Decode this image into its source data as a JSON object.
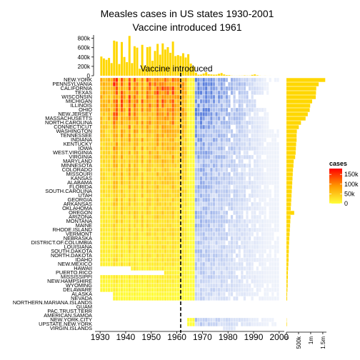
{
  "chart_data": {
    "type": "heatmap",
    "title": "Measles cases in US states 1930-2001",
    "subtitle": "Vaccine introduced 1961",
    "annotation": "Vaccine introduced",
    "vaccine_year": 1961,
    "x_range": [
      1928,
      2002
    ],
    "x_ticks": [
      "1930",
      "1940",
      "1950",
      "1960",
      "1970",
      "1980",
      "1990",
      "2000"
    ],
    "x_tick_values": [
      1930,
      1940,
      1950,
      1960,
      1970,
      1980,
      1990,
      2000
    ],
    "states": [
      "NEW.YORK",
      "PENNSYLVANIA",
      "CALIFORNIA",
      "TEXAS",
      "WISCONSIN",
      "MICHIGAN",
      "ILLINOIS",
      "OHIO",
      "NEW.JERSEY",
      "MASSACHUSETTS",
      "NORTH.CAROLINA",
      "CONNECTICUT",
      "WASHINGTON",
      "TENNESSEE",
      "INDIANA",
      "KENTUCKY",
      "IOWA",
      "WEST.VIRGINIA",
      "VIRGINIA",
      "MARYLAND",
      "MINNESOTA",
      "COLORADO",
      "MISSOURI",
      "KANSAS",
      "ALABAMA",
      "FLORIDA",
      "SOUTH.CAROLINA",
      "UTAH",
      "GEORGIA",
      "ARKANSAS",
      "OKLAHOMA",
      "OREGON",
      "ARIZONA",
      "MONTANA",
      "MAINE",
      "RHODE.ISLAND",
      "VERMONT",
      "NEBRASKA",
      "DISTRICT.OF.COLUMBIA",
      "LOUISIANA",
      "SOUTH.DAKOTA",
      "NORTH.DAKOTA",
      "IDAHO",
      "NEW.MEXICO",
      "HAWAII",
      "PUERTO.RICO",
      "MISSISSIPPI",
      "NEW.HAMPSHIRE",
      "WYOMING",
      "DELAWARE",
      "ALASKA",
      "NEVADA",
      "NORTHERN.MARIANA.ISLANDS",
      "GUAM",
      "PAC.TRUST.TERR",
      "AMERICAN.SAMOA",
      "NEW.YORK.CITY",
      "UPSTATE.NEW.YORK",
      "VIRGIN.ISLANDS"
    ],
    "state_totals": [
      1600000,
      1330000,
      1230000,
      1220000,
      1210000,
      1060000,
      980000,
      960000,
      880000,
      790000,
      600000,
      510000,
      430000,
      420000,
      420000,
      400000,
      390000,
      380000,
      360000,
      300000,
      290000,
      270000,
      260000,
      250000,
      240000,
      230000,
      220000,
      210000,
      200000,
      190000,
      180000,
      320000,
      170000,
      160000,
      150000,
      140000,
      130000,
      120000,
      110000,
      100000,
      100000,
      90000,
      90000,
      80000,
      70000,
      60000,
      60000,
      50000,
      50000,
      40000,
      30000,
      30000,
      0,
      0,
      0,
      0,
      10000,
      20000,
      0
    ],
    "state_profile": [
      1.0,
      0.97,
      0.95,
      0.92,
      0.9,
      0.88,
      0.84,
      0.86,
      0.8,
      0.78,
      0.7,
      0.66,
      0.6,
      0.58,
      0.58,
      0.55,
      0.54,
      0.54,
      0.52,
      0.46,
      0.45,
      0.43,
      0.42,
      0.41,
      0.4,
      0.39,
      0.38,
      0.37,
      0.36,
      0.35,
      0.34,
      0.33,
      0.32,
      0.3,
      0.29,
      0.28,
      0.26,
      0.25,
      0.24,
      0.23,
      0.22,
      0.21,
      0.2,
      0.19,
      0.15,
      0.14,
      0.16,
      0.14,
      0.1,
      0.09,
      0.05,
      0.06,
      0,
      0,
      0,
      0,
      0.18,
      0.2,
      0
    ],
    "state_first_year": [
      1930,
      1930,
      1930,
      1930,
      1930,
      1930,
      1930,
      1930,
      1930,
      1930,
      1930,
      1930,
      1930,
      1930,
      1930,
      1930,
      1930,
      1930,
      1930,
      1930,
      1930,
      1930,
      1930,
      1930,
      1930,
      1930,
      1930,
      1930,
      1930,
      1930,
      1930,
      1930,
      1930,
      1930,
      1930,
      1930,
      1930,
      1930,
      1930,
      1930,
      1930,
      1930,
      1930,
      1930,
      1942,
      1955,
      1930,
      1930,
      1930,
      1930,
      1935,
      1935,
      0,
      0,
      0,
      0,
      1964,
      1964,
      1978
    ],
    "state_last_year": [
      1999,
      1995,
      1995,
      1995,
      1990,
      1990,
      1990,
      1995,
      1995,
      1995,
      1995,
      1995,
      1999,
      1999,
      1999,
      1999,
      1999,
      1999,
      1999,
      1999,
      1999,
      1999,
      1999,
      1999,
      1999,
      1999,
      1999,
      1999,
      1999,
      1999,
      1999,
      1999,
      1999,
      1999,
      1999,
      1999,
      1999,
      1999,
      1999,
      1999,
      1999,
      1999,
      1999,
      1999,
      1999,
      1999,
      1999,
      1999,
      1999,
      1999,
      1999,
      1999,
      0,
      0,
      0,
      0,
      1998,
      1998,
      1982
    ],
    "year_totals": [
      [
        1930,
        410000
      ],
      [
        1931,
        370000
      ],
      [
        1932,
        340000
      ],
      [
        1933,
        380000
      ],
      [
        1934,
        270000
      ],
      [
        1935,
        750000
      ],
      [
        1936,
        730000
      ],
      [
        1937,
        250000
      ],
      [
        1938,
        720000
      ],
      [
        1939,
        400000
      ],
      [
        1940,
        290000
      ],
      [
        1941,
        850000
      ],
      [
        1942,
        270000
      ],
      [
        1943,
        630000
      ],
      [
        1944,
        600000
      ],
      [
        1945,
        150000
      ],
      [
        1946,
        660000
      ],
      [
        1947,
        220000
      ],
      [
        1948,
        610000
      ],
      [
        1949,
        620000
      ],
      [
        1950,
        320000
      ],
      [
        1951,
        530000
      ],
      [
        1952,
        680000
      ],
      [
        1953,
        450000
      ],
      [
        1954,
        690000
      ],
      [
        1955,
        560000
      ],
      [
        1956,
        610000
      ],
      [
        1957,
        490000
      ],
      [
        1958,
        730000
      ],
      [
        1959,
        420000
      ],
      [
        1960,
        440000
      ],
      [
        1961,
        420000
      ],
      [
        1962,
        480000
      ],
      [
        1963,
        390000
      ],
      [
        1964,
        460000
      ],
      [
        1965,
        260000
      ],
      [
        1966,
        200000
      ],
      [
        1967,
        65000
      ],
      [
        1968,
        22000
      ],
      [
        1969,
        25000
      ],
      [
        1970,
        47000
      ],
      [
        1971,
        75000
      ],
      [
        1972,
        32000
      ],
      [
        1973,
        27000
      ],
      [
        1974,
        22000
      ],
      [
        1975,
        24000
      ],
      [
        1976,
        41000
      ],
      [
        1977,
        57000
      ],
      [
        1978,
        27000
      ],
      [
        1979,
        14000
      ],
      [
        1980,
        13000
      ],
      [
        1981,
        3000
      ],
      [
        1982,
        1700
      ],
      [
        1983,
        1500
      ],
      [
        1984,
        2600
      ],
      [
        1985,
        2800
      ],
      [
        1986,
        6300
      ],
      [
        1987,
        3600
      ],
      [
        1988,
        3400
      ],
      [
        1989,
        18000
      ],
      [
        1990,
        28000
      ],
      [
        1991,
        9600
      ],
      [
        1992,
        2200
      ],
      [
        1993,
        300
      ],
      [
        1994,
        1000
      ],
      [
        1995,
        300
      ],
      [
        1996,
        500
      ],
      [
        1997,
        100
      ],
      [
        1998,
        100
      ],
      [
        1999,
        100
      ],
      [
        2000,
        80
      ],
      [
        2001,
        100
      ]
    ],
    "top_yaxis": {
      "ticks": [
        "0",
        "200k",
        "400k",
        "600k",
        "800k"
      ],
      "values": [
        0,
        200000,
        400000,
        600000,
        800000
      ],
      "max": 870000
    },
    "right_xaxis": {
      "ticks": [
        "0",
        "500k",
        "1m",
        "1.5m"
      ],
      "values": [
        0,
        500000,
        1000000,
        1500000
      ],
      "max": 1650000
    },
    "legend": {
      "title": "cases",
      "labels": [
        "150k",
        "100k",
        "50k",
        "0"
      ],
      "values": [
        150000,
        100000,
        50000,
        0
      ],
      "max": 180000
    },
    "colors": {
      "bar": "#ffd700",
      "low": "#ffff3a",
      "high": "#ff0000",
      "post_vaccine_high": "#5a7fdc",
      "post_vaccine_low": "#eef2fb"
    }
  }
}
